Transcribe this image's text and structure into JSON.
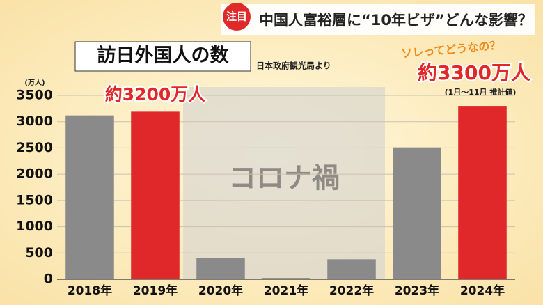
{
  "headline": {
    "badge": "注目",
    "text": "中国人富裕層に“10年ビザ”どんな影響？"
  },
  "corner_caption": "ソレってどうなの？",
  "chart_data": {
    "type": "bar",
    "title": "訪日外国人の数",
    "source": "日本政府観光局より",
    "y_unit": "(万人)",
    "annotation": "コロナ禍",
    "note_2024": "(1月～11月 推計値)",
    "categories": [
      "2018年",
      "2019年",
      "2020年",
      "2021年",
      "2022年",
      "2023年",
      "2024年"
    ],
    "values": [
      3120,
      3190,
      410,
      25,
      380,
      2510,
      3300
    ],
    "value_labels": [
      null,
      "約3200万人",
      null,
      null,
      null,
      null,
      "約3300万人"
    ],
    "colors": [
      "#8a8a8a",
      "#e0282a",
      "#8a8a8a",
      "#8a8a8a",
      "#8a8a8a",
      "#8a8a8a",
      "#e0282a"
    ],
    "ylim": [
      0,
      3500
    ],
    "yticks": [
      0,
      500,
      1000,
      1500,
      2000,
      2500,
      3000,
      3500
    ],
    "grid": true
  }
}
